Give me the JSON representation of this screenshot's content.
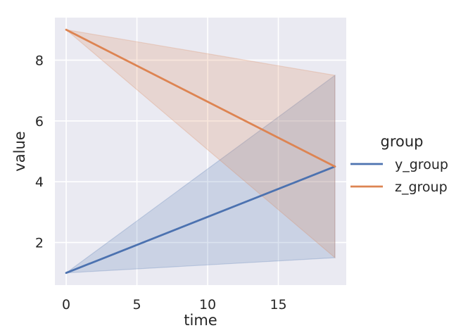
{
  "chart_data": {
    "type": "line",
    "xlabel": "time",
    "ylabel": "value",
    "xlim": [
      -0.8,
      19.8
    ],
    "ylim": [
      0.6,
      9.4
    ],
    "xticks": [
      0,
      5,
      10,
      15
    ],
    "yticks": [
      2,
      4,
      6,
      8
    ],
    "grid": true,
    "legend": {
      "title": "group",
      "placement": "right"
    },
    "series": [
      {
        "name": "y_group",
        "color": "#4c72b0",
        "x": [
          0,
          19
        ],
        "values": [
          1.0,
          4.5
        ],
        "band_lower": [
          1.0,
          1.5
        ],
        "band_upper": [
          1.0,
          7.5
        ]
      },
      {
        "name": "z_group",
        "color": "#dd8452",
        "x": [
          0,
          19
        ],
        "values": [
          9.0,
          4.5
        ],
        "band_lower": [
          9.0,
          1.5
        ],
        "band_upper": [
          9.0,
          7.5
        ]
      }
    ]
  }
}
